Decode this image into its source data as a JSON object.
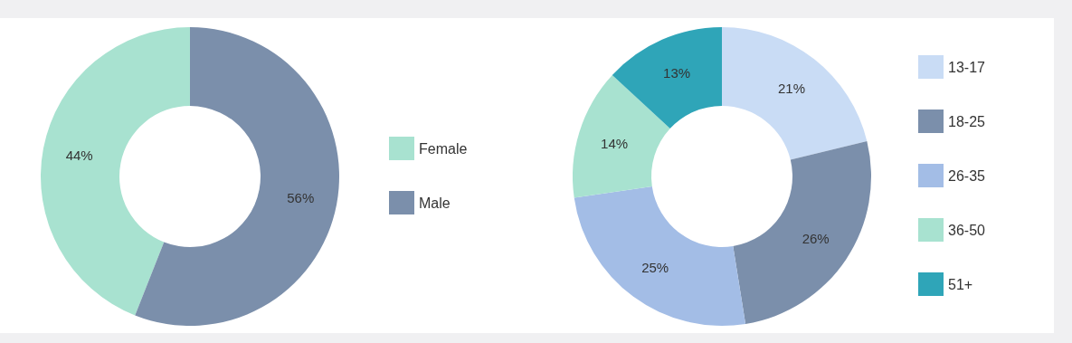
{
  "chart_data": [
    {
      "type": "donut",
      "categories": [
        "Female",
        "Male"
      ],
      "values": [
        44,
        56
      ],
      "value_labels": [
        "44%",
        "56%"
      ],
      "colors": [
        "#a8e2d0",
        "#7b8fab"
      ],
      "legend": "right"
    },
    {
      "type": "donut",
      "categories": [
        "13-17",
        "18-25",
        "26-35",
        "36-50",
        "51+"
      ],
      "values": [
        21,
        26,
        25,
        14,
        13
      ],
      "value_labels": [
        "21%",
        "26%",
        "25%",
        "14%",
        "13%"
      ],
      "colors": [
        "#c9dcf5",
        "#7b8fab",
        "#a3bde6",
        "#a8e2d0",
        "#2fa5b8"
      ],
      "legend": "right"
    }
  ]
}
